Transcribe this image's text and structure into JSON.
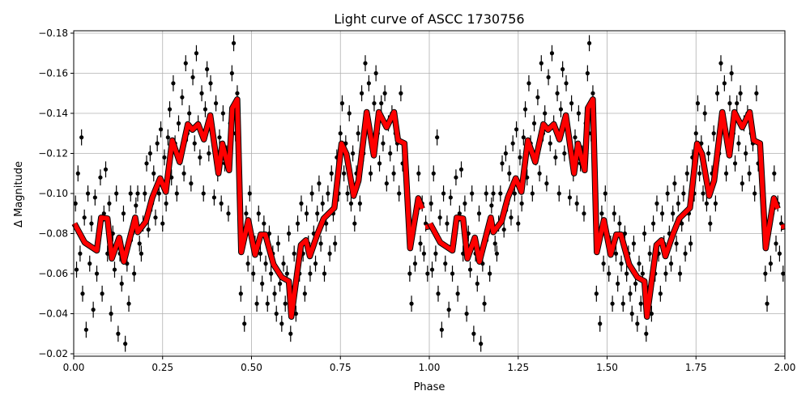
{
  "chart_data": {
    "type": "scatter",
    "title": "Light curve of ASCC 1730756",
    "xlabel": "Phase",
    "ylabel": "Δ Magnitude",
    "xlim": [
      0,
      2
    ],
    "ylim": [
      -0.0188,
      -0.1812
    ],
    "y_inverted": true,
    "grid": true,
    "xticks": [
      0,
      0.25,
      0.5,
      0.75,
      1.0,
      1.25,
      1.5,
      1.75,
      2.0
    ],
    "xtick_labels": [
      "0.00",
      "0.25",
      "0.50",
      "0.75",
      "1.00",
      "1.25",
      "1.50",
      "1.75",
      "2.00"
    ],
    "yticks": [
      -0.18,
      -0.16,
      -0.14,
      -0.12,
      -0.1,
      -0.08,
      -0.06,
      -0.04,
      -0.02
    ],
    "ytick_labels": [
      "−0.18",
      "−0.16",
      "−0.14",
      "−0.12",
      "−0.10",
      "−0.08",
      "−0.06",
      "−0.04",
      "−0.02"
    ],
    "repeat_cycles": 2,
    "colors": {
      "points": "#000000",
      "model": "#ff0000",
      "grid": "#b0b0b0"
    },
    "yerr": 0.004,
    "points": [
      [
        0.005,
        -0.095
      ],
      [
        0.008,
        -0.062
      ],
      [
        0.012,
        -0.11
      ],
      [
        0.018,
        -0.07
      ],
      [
        0.022,
        -0.128
      ],
      [
        0.025,
        -0.05
      ],
      [
        0.03,
        -0.088
      ],
      [
        0.035,
        -0.032
      ],
      [
        0.04,
        -0.1
      ],
      [
        0.045,
        -0.065
      ],
      [
        0.05,
        -0.085
      ],
      [
        0.055,
        -0.042
      ],
      [
        0.06,
        -0.098
      ],
      [
        0.065,
        -0.06
      ],
      [
        0.07,
        -0.075
      ],
      [
        0.075,
        -0.108
      ],
      [
        0.08,
        -0.05
      ],
      [
        0.085,
        -0.09
      ],
      [
        0.09,
        -0.112
      ],
      [
        0.095,
        -0.07
      ],
      [
        0.1,
        -0.095
      ],
      [
        0.105,
        -0.04
      ],
      [
        0.11,
        -0.08
      ],
      [
        0.115,
        -0.062
      ],
      [
        0.12,
        -0.1
      ],
      [
        0.125,
        -0.03
      ],
      [
        0.13,
        -0.07
      ],
      [
        0.135,
        -0.055
      ],
      [
        0.14,
        -0.09
      ],
      [
        0.145,
        -0.025
      ],
      [
        0.15,
        -0.065
      ],
      [
        0.155,
        -0.045
      ],
      [
        0.16,
        -0.1
      ],
      [
        0.165,
        -0.08
      ],
      [
        0.17,
        -0.06
      ],
      [
        0.175,
        -0.094
      ],
      [
        0.18,
        -0.1
      ],
      [
        0.185,
        -0.075
      ],
      [
        0.19,
        -0.07
      ],
      [
        0.195,
        -0.085
      ],
      [
        0.2,
        -0.1
      ],
      [
        0.205,
        -0.115
      ],
      [
        0.21,
        -0.082
      ],
      [
        0.215,
        -0.12
      ],
      [
        0.22,
        -0.095
      ],
      [
        0.225,
        -0.11
      ],
      [
        0.23,
        -0.088
      ],
      [
        0.235,
        -0.125
      ],
      [
        0.24,
        -0.1
      ],
      [
        0.245,
        -0.132
      ],
      [
        0.25,
        -0.085
      ],
      [
        0.255,
        -0.118
      ],
      [
        0.26,
        -0.095
      ],
      [
        0.265,
        -0.128
      ],
      [
        0.27,
        -0.142
      ],
      [
        0.275,
        -0.108
      ],
      [
        0.28,
        -0.155
      ],
      [
        0.285,
        -0.125
      ],
      [
        0.29,
        -0.1
      ],
      [
        0.295,
        -0.135
      ],
      [
        0.3,
        -0.118
      ],
      [
        0.305,
        -0.148
      ],
      [
        0.31,
        -0.11
      ],
      [
        0.315,
        -0.165
      ],
      [
        0.32,
        -0.13
      ],
      [
        0.325,
        -0.14
      ],
      [
        0.33,
        -0.105
      ],
      [
        0.335,
        -0.158
      ],
      [
        0.34,
        -0.125
      ],
      [
        0.345,
        -0.17
      ],
      [
        0.35,
        -0.135
      ],
      [
        0.355,
        -0.118
      ],
      [
        0.36,
        -0.15
      ],
      [
        0.365,
        -0.1
      ],
      [
        0.37,
        -0.142
      ],
      [
        0.375,
        -0.162
      ],
      [
        0.38,
        -0.12
      ],
      [
        0.385,
        -0.155
      ],
      [
        0.39,
        -0.132
      ],
      [
        0.395,
        -0.098
      ],
      [
        0.4,
        -0.145
      ],
      [
        0.405,
        -0.11
      ],
      [
        0.41,
        -0.128
      ],
      [
        0.415,
        -0.095
      ],
      [
        0.42,
        -0.14
      ],
      [
        0.425,
        -0.115
      ],
      [
        0.43,
        -0.12
      ],
      [
        0.435,
        -0.09
      ],
      [
        0.44,
        -0.135
      ],
      [
        0.445,
        -0.16
      ],
      [
        0.45,
        -0.175
      ],
      [
        0.455,
        -0.13
      ],
      [
        0.46,
        -0.15
      ],
      [
        0.47,
        -0.05
      ],
      [
        0.475,
        -0.075
      ],
      [
        0.48,
        -0.035
      ],
      [
        0.485,
        -0.09
      ],
      [
        0.49,
        -0.065
      ],
      [
        0.495,
        -0.1
      ],
      [
        0.5,
        -0.08
      ],
      [
        0.505,
        -0.06
      ],
      [
        0.51,
        -0.075
      ],
      [
        0.515,
        -0.045
      ],
      [
        0.52,
        -0.09
      ],
      [
        0.525,
        -0.07
      ],
      [
        0.53,
        -0.055
      ],
      [
        0.535,
        -0.085
      ],
      [
        0.54,
        -0.065
      ],
      [
        0.545,
        -0.045
      ],
      [
        0.55,
        -0.08
      ],
      [
        0.555,
        -0.06
      ],
      [
        0.56,
        -0.07
      ],
      [
        0.565,
        -0.05
      ],
      [
        0.57,
        -0.04
      ],
      [
        0.575,
        -0.075
      ],
      [
        0.58,
        -0.055
      ],
      [
        0.585,
        -0.035
      ],
      [
        0.59,
        -0.065
      ],
      [
        0.595,
        -0.045
      ],
      [
        0.6,
        -0.06
      ],
      [
        0.605,
        -0.08
      ],
      [
        0.61,
        -0.03
      ],
      [
        0.615,
        -0.05
      ],
      [
        0.62,
        -0.07
      ],
      [
        0.625,
        -0.04
      ],
      [
        0.63,
        -0.085
      ],
      [
        0.635,
        -0.06
      ],
      [
        0.64,
        -0.095
      ],
      [
        0.645,
        -0.07
      ],
      [
        0.65,
        -0.05
      ],
      [
        0.655,
        -0.09
      ],
      [
        0.66,
        -0.075
      ],
      [
        0.665,
        -0.06
      ],
      [
        0.67,
        -0.1
      ],
      [
        0.675,
        -0.08
      ],
      [
        0.68,
        -0.065
      ],
      [
        0.685,
        -0.09
      ],
      [
        0.69,
        -0.105
      ],
      [
        0.695,
        -0.075
      ],
      [
        0.7,
        -0.095
      ],
      [
        0.705,
        -0.06
      ],
      [
        0.71,
        -0.085
      ],
      [
        0.715,
        -0.1
      ],
      [
        0.72,
        -0.07
      ],
      [
        0.725,
        -0.11
      ],
      [
        0.73,
        -0.09
      ],
      [
        0.735,
        -0.075
      ],
      [
        0.74,
        -0.118
      ],
      [
        0.745,
        -0.1
      ],
      [
        0.75,
        -0.13
      ],
      [
        0.755,
        -0.145
      ],
      [
        0.76,
        -0.11
      ],
      [
        0.765,
        -0.125
      ],
      [
        0.77,
        -0.1
      ],
      [
        0.775,
        -0.14
      ],
      [
        0.78,
        -0.095
      ],
      [
        0.785,
        -0.12
      ],
      [
        0.79,
        -0.085
      ],
      [
        0.795,
        -0.11
      ],
      [
        0.8,
        -0.13
      ],
      [
        0.805,
        -0.095
      ],
      [
        0.81,
        -0.15
      ],
      [
        0.815,
        -0.12
      ],
      [
        0.82,
        -0.165
      ],
      [
        0.825,
        -0.135
      ],
      [
        0.83,
        -0.155
      ],
      [
        0.835,
        -0.11
      ],
      [
        0.84,
        -0.125
      ],
      [
        0.845,
        -0.145
      ],
      [
        0.85,
        -0.16
      ],
      [
        0.855,
        -0.13
      ],
      [
        0.86,
        -0.115
      ],
      [
        0.865,
        -0.145
      ],
      [
        0.87,
        -0.125
      ],
      [
        0.875,
        -0.15
      ],
      [
        0.88,
        -0.105
      ],
      [
        0.885,
        -0.135
      ],
      [
        0.89,
        -0.12
      ],
      [
        0.895,
        -0.14
      ],
      [
        0.9,
        -0.11
      ],
      [
        0.905,
        -0.13
      ],
      [
        0.91,
        -0.125
      ],
      [
        0.915,
        -0.1
      ],
      [
        0.92,
        -0.15
      ],
      [
        0.925,
        -0.115
      ],
      [
        0.93,
        -0.12
      ],
      [
        0.935,
        -0.1
      ],
      [
        0.94,
        -0.085
      ],
      [
        0.945,
        -0.06
      ],
      [
        0.95,
        -0.045
      ],
      [
        0.955,
        -0.08
      ],
      [
        0.96,
        -0.065
      ],
      [
        0.965,
        -0.09
      ],
      [
        0.97,
        -0.11
      ],
      [
        0.975,
        -0.075
      ],
      [
        0.98,
        -0.095
      ],
      [
        0.985,
        -0.07
      ],
      [
        0.99,
        -0.085
      ],
      [
        0.995,
        -0.06
      ]
    ],
    "model_segments": [
      [
        [
          0.002,
          -0.085
        ],
        [
          0.031,
          -0.0755
        ],
        [
          0.065,
          -0.0715
        ],
        [
          0.077,
          -0.088
        ],
        [
          0.095,
          -0.0875
        ],
        [
          0.107,
          -0.0675
        ],
        [
          0.128,
          -0.078
        ],
        [
          0.141,
          -0.066
        ],
        [
          0.173,
          -0.088
        ],
        [
          0.18,
          -0.0807
        ],
        [
          0.203,
          -0.086
        ],
        [
          0.221,
          -0.098
        ],
        [
          0.243,
          -0.1076
        ],
        [
          0.259,
          -0.1008
        ],
        [
          0.277,
          -0.1265
        ],
        [
          0.298,
          -0.1157
        ],
        [
          0.321,
          -0.1346
        ],
        [
          0.334,
          -0.1318
        ],
        [
          0.35,
          -0.1346
        ],
        [
          0.366,
          -0.127
        ],
        [
          0.384,
          -0.139
        ],
        [
          0.407,
          -0.11
        ],
        [
          0.418,
          -0.1249
        ],
        [
          0.437,
          -0.1116
        ],
        [
          0.446,
          -0.1426
        ],
        [
          0.46,
          -0.147
        ],
        [
          0.471,
          -0.0707
        ],
        [
          0.491,
          -0.0867
        ],
        [
          0.51,
          -0.0694
        ],
        [
          0.526,
          -0.0795
        ],
        [
          0.539,
          -0.0795
        ],
        [
          0.562,
          -0.0646
        ],
        [
          0.585,
          -0.0582
        ],
        [
          0.605,
          -0.0562
        ],
        [
          0.612,
          -0.0385
        ],
        [
          0.639,
          -0.0743
        ],
        [
          0.653,
          -0.0767
        ],
        [
          0.664,
          -0.0687
        ],
        [
          0.685,
          -0.0795
        ],
        [
          0.703,
          -0.0875
        ],
        [
          0.733,
          -0.0928
        ],
        [
          0.753,
          -0.1249
        ],
        [
          0.767,
          -0.1197
        ],
        [
          0.787,
          -0.0988
        ],
        [
          0.801,
          -0.1064
        ],
        [
          0.824,
          -0.1406
        ],
        [
          0.844,
          -0.119
        ],
        [
          0.858,
          -0.1406
        ],
        [
          0.88,
          -0.133
        ],
        [
          0.901,
          -0.1406
        ],
        [
          0.912,
          -0.1265
        ],
        [
          0.93,
          -0.125
        ],
        [
          0.946,
          -0.0727
        ],
        [
          0.969,
          -0.0976
        ],
        [
          0.98,
          -0.0924
        ]
      ],
      [
        [
          0.989,
          -0.0832
        ],
        [
          1.0,
          -0.0836
        ]
      ]
    ]
  }
}
